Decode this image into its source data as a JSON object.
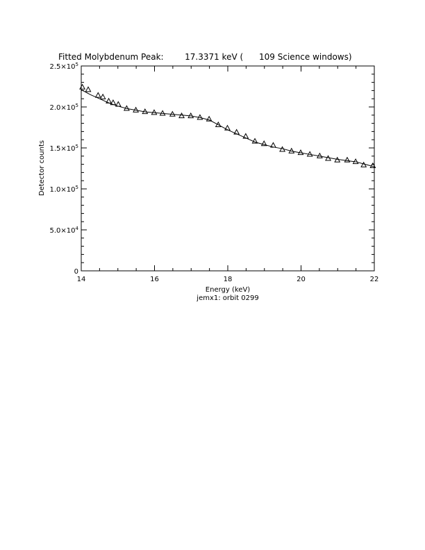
{
  "chart_data": {
    "type": "scatter",
    "title": "Fitted Molybdenum Peak:        17.3371 keV (      109 Science windows)",
    "xlabel": "Energy (keV)",
    "ylabel": "Detector counts",
    "subtitle": "jemx1: orbit 0299",
    "xlim": [
      14,
      22
    ],
    "ylim": [
      0,
      250000
    ],
    "x_ticks": [
      {
        "value": 14,
        "label": "14"
      },
      {
        "value": 16,
        "label": "16"
      },
      {
        "value": 18,
        "label": "18"
      },
      {
        "value": 20,
        "label": "20"
      },
      {
        "value": 22,
        "label": "22"
      }
    ],
    "y_ticks": [
      {
        "value": 0,
        "mant": "0",
        "exp": ""
      },
      {
        "value": 50000,
        "mant": "5.0×10",
        "exp": "4"
      },
      {
        "value": 100000,
        "mant": "1.0×10",
        "exp": "5"
      },
      {
        "value": 150000,
        "mant": "1.5×10",
        "exp": "5"
      },
      {
        "value": 200000,
        "mant": "2.0×10",
        "exp": "5"
      },
      {
        "value": 250000,
        "mant": "2.5×10",
        "exp": "5"
      }
    ],
    "series": [
      {
        "marker": "triangle",
        "x": [
          14.03,
          14.19,
          14.46,
          14.59,
          14.75,
          14.87,
          15.01,
          15.24,
          15.49,
          15.74,
          15.99,
          16.22,
          16.49,
          16.74,
          16.99,
          17.24,
          17.49,
          17.74,
          17.99,
          18.24,
          18.49,
          18.74,
          18.99,
          19.24,
          19.49,
          19.74,
          19.99,
          20.24,
          20.51,
          20.74,
          20.99,
          21.26,
          21.49,
          21.71,
          21.96
        ],
        "y": [
          224000,
          221000,
          214000,
          212000,
          207000,
          205000,
          203000,
          198000,
          196000,
          194000,
          193000,
          192000,
          191000,
          189000,
          189000,
          187000,
          185000,
          178000,
          174000,
          169000,
          164000,
          158000,
          155000,
          153000,
          148000,
          146000,
          144000,
          142000,
          140000,
          137000,
          135000,
          135000,
          133000,
          129000,
          128000
        ]
      },
      {
        "style": "line",
        "x": [
          14.0,
          14.25,
          14.5,
          14.75,
          15.0,
          15.25,
          15.5,
          15.75,
          16.0,
          16.25,
          16.5,
          16.75,
          17.0,
          17.25,
          17.5,
          17.75,
          18.0,
          18.25,
          18.5,
          18.75,
          19.0,
          19.25,
          19.5,
          19.75,
          20.0,
          20.25,
          20.5,
          20.75,
          21.0,
          21.25,
          21.5,
          21.75,
          22.0
        ],
        "y": [
          221000,
          215000,
          210000,
          205000,
          201000,
          198000,
          196000,
          194000,
          193000,
          192000,
          191000,
          190000,
          189000,
          187000,
          184000,
          178000,
          172000,
          167000,
          162000,
          157000,
          154000,
          151000,
          149000,
          146000,
          144000,
          142000,
          140000,
          138000,
          136000,
          134500,
          133000,
          130000,
          127000
        ]
      }
    ]
  }
}
